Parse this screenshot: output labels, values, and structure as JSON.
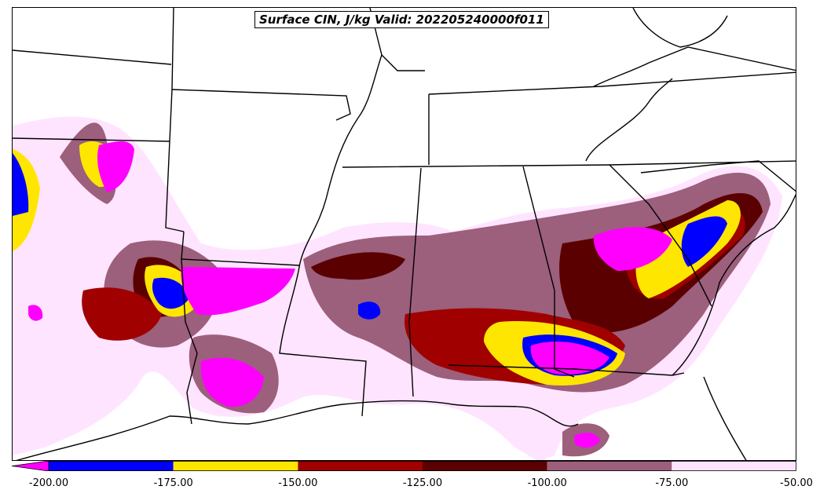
{
  "title": "Surface CIN, J/kg Valid: 202205240000f011",
  "colorbar": {
    "ticks": [
      "-200.00",
      "-175.00",
      "-150.00",
      "-125.00",
      "-100.00",
      "-75.00",
      "-50.00"
    ],
    "bins": [
      {
        "from": -200,
        "to": -175,
        "color": "#0000ff"
      },
      {
        "from": -175,
        "to": -150,
        "color": "#ffe600"
      },
      {
        "from": -150,
        "to": -125,
        "color": "#a00000"
      },
      {
        "from": -125,
        "to": -100,
        "color": "#5a0000"
      },
      {
        "from": -100,
        "to": -75,
        "color": "#9c5f7c"
      },
      {
        "from": -75,
        "to": -50,
        "color": "#ffe4ff"
      }
    ],
    "below_min_color": "#ff00ff"
  }
}
